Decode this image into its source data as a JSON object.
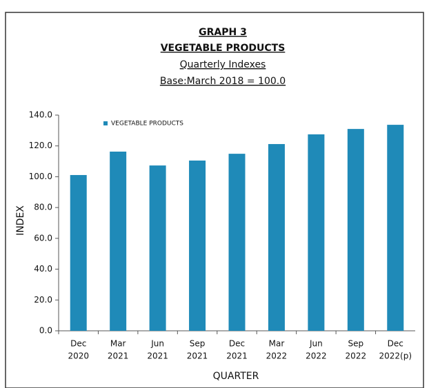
{
  "chart_data": {
    "type": "bar",
    "title": [
      "GRAPH 3",
      "VEGETABLE PRODUCTS",
      "Quarterly Indexes",
      "Base:March 2018 = 100.0"
    ],
    "categories": [
      [
        "Dec",
        "2020"
      ],
      [
        "Mar",
        "2021"
      ],
      [
        "Jun",
        "2021"
      ],
      [
        "Sep",
        "2021"
      ],
      [
        "Dec",
        "2021"
      ],
      [
        "Mar",
        "2022"
      ],
      [
        "Jun",
        "2022"
      ],
      [
        "Sep",
        "2022"
      ],
      [
        "Dec",
        "2022(p)"
      ]
    ],
    "series": [
      {
        "name": "VEGETABLE PRODUCTS",
        "color": "#1f8ab8",
        "values": [
          101.1,
          116.3,
          107.3,
          110.5,
          114.9,
          121.2,
          127.5,
          131.0,
          133.7
        ]
      }
    ],
    "ylim": [
      0,
      140
    ],
    "yticks": [
      {
        "value": 0,
        "label": "0.0"
      },
      {
        "value": 20,
        "label": "20.0"
      },
      {
        "value": 40,
        "label": "40.0"
      },
      {
        "value": 60,
        "label": "60.0"
      },
      {
        "value": 80,
        "label": "80.0"
      },
      {
        "value": 100,
        "label": "100.0"
      },
      {
        "value": 120,
        "label": "120.0"
      },
      {
        "value": 140,
        "label": "140.0"
      }
    ],
    "y_label": "INDEX",
    "x_label": "QUARTER",
    "legend": "top-left"
  }
}
